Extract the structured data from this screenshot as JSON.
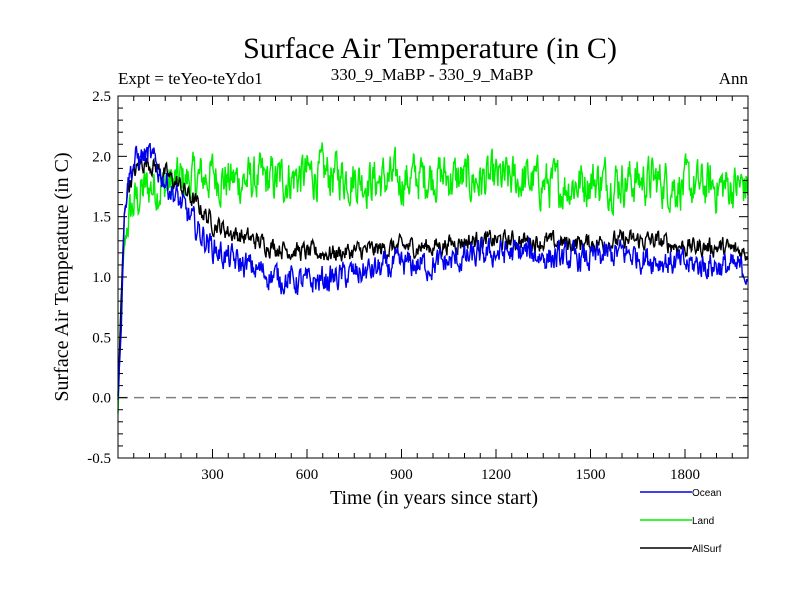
{
  "chart_data": {
    "type": "line",
    "title": "Surface Air Temperature (in C)",
    "subtitle_left": "Expt = teYeo-teYdo1",
    "subtitle_center": "330_9_MaBP - 330_9_MaBP",
    "subtitle_right": "Ann",
    "xlabel": "Time (in years since start)",
    "ylabel": "Surface Air Temperature (in C)",
    "xlim": [
      0,
      2000
    ],
    "ylim": [
      -0.5,
      2.5
    ],
    "xticks": [
      300,
      600,
      900,
      1200,
      1500,
      1800
    ],
    "xtick_labels": [
      "300",
      "600",
      "900",
      "1200",
      "1500",
      "1800"
    ],
    "yticks": [
      -0.5,
      0.0,
      0.5,
      1.0,
      1.5,
      2.0,
      2.5
    ],
    "ytick_labels": [
      "-0.5",
      "0.0",
      "0.5",
      "1.0",
      "1.5",
      "2.0",
      "2.5"
    ],
    "reference_line": {
      "y": 0.0,
      "style": "dashed",
      "color": "#808080"
    },
    "legend_position": "bottom-right",
    "series": [
      {
        "name": "Land",
        "color": "#00ee00",
        "x": [
          0,
          10,
          20,
          30,
          50,
          75,
          100,
          150,
          200,
          250,
          300,
          350,
          400,
          500,
          600,
          700,
          800,
          900,
          1000,
          1100,
          1200,
          1300,
          1400,
          1500,
          1600,
          1700,
          1800,
          1900,
          2000
        ],
        "values": [
          -0.15,
          0.8,
          1.2,
          1.45,
          1.6,
          1.7,
          1.75,
          1.75,
          1.8,
          1.8,
          1.85,
          1.8,
          1.8,
          1.8,
          1.85,
          1.85,
          1.8,
          1.8,
          1.85,
          1.8,
          1.8,
          1.8,
          1.75,
          1.8,
          1.8,
          1.8,
          1.75,
          1.75,
          1.75
        ],
        "noise_amplitude": 0.22
      },
      {
        "name": "AllSurf",
        "color": "#000000",
        "x": [
          0,
          10,
          20,
          30,
          50,
          75,
          100,
          150,
          200,
          250,
          300,
          350,
          400,
          500,
          600,
          700,
          800,
          900,
          1000,
          1100,
          1200,
          1300,
          1400,
          1500,
          1600,
          1700,
          1800,
          1900,
          2000
        ],
        "values": [
          0.0,
          0.8,
          1.5,
          1.75,
          1.85,
          1.95,
          1.95,
          1.85,
          1.75,
          1.6,
          1.45,
          1.38,
          1.33,
          1.25,
          1.2,
          1.2,
          1.22,
          1.25,
          1.25,
          1.3,
          1.3,
          1.3,
          1.28,
          1.28,
          1.3,
          1.3,
          1.25,
          1.25,
          1.2
        ],
        "noise_amplitude": 0.09
      },
      {
        "name": "Ocean",
        "color": "#0000ee",
        "x": [
          0,
          10,
          20,
          30,
          50,
          75,
          100,
          150,
          200,
          250,
          300,
          350,
          400,
          500,
          600,
          700,
          800,
          900,
          1000,
          1100,
          1200,
          1300,
          1400,
          1500,
          1600,
          1700,
          1800,
          1900,
          2000
        ],
        "values": [
          0.0,
          0.6,
          1.5,
          1.8,
          1.95,
          2.0,
          2.0,
          1.8,
          1.6,
          1.4,
          1.25,
          1.15,
          1.1,
          1.0,
          0.95,
          1.0,
          1.05,
          1.1,
          1.1,
          1.15,
          1.2,
          1.2,
          1.15,
          1.15,
          1.2,
          1.15,
          1.1,
          1.1,
          1.05
        ],
        "noise_amplitude": 0.13
      }
    ],
    "legend": [
      {
        "name": "Ocean",
        "color": "#0000ee"
      },
      {
        "name": "Land",
        "color": "#00ee00"
      },
      {
        "name": "AllSurf",
        "color": "#000000"
      }
    ]
  }
}
